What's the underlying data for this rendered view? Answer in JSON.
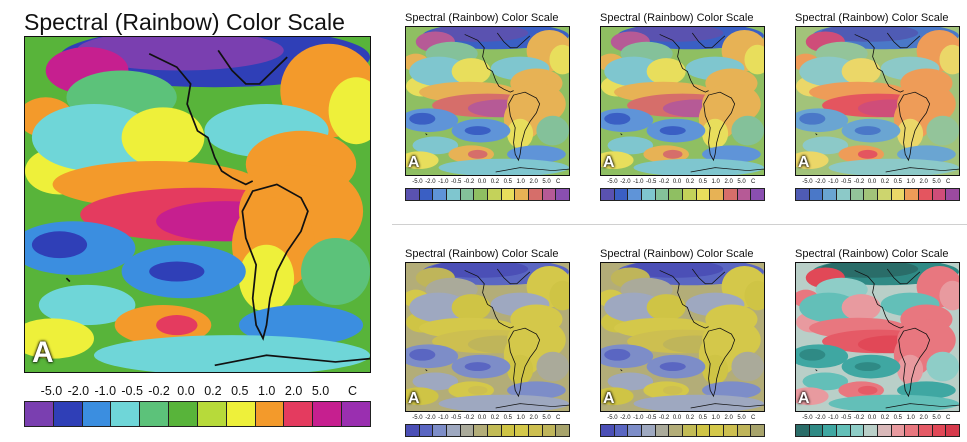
{
  "title": "Spectral (Rainbow) Color Scale",
  "panel_letter": "A",
  "colorbar": {
    "ticks": [
      "-5.0",
      "-2.0",
      "-1.0",
      "-0.5",
      "-0.2",
      "0.0",
      "0.2",
      "0.5",
      "1.0",
      "2.0",
      "5.0"
    ],
    "unit": "C"
  },
  "panels": [
    {
      "name": "main",
      "colors": [
        "#7a3fb0",
        "#2f3fb7",
        "#3b8ee0",
        "#6fd6d8",
        "#5cc27a",
        "#58b43a",
        "#b7da3a",
        "#eef03a",
        "#f39a2b",
        "#e43b5f",
        "#c61f8f",
        "#9a2fb0"
      ]
    },
    {
      "name": "variant-1",
      "colors": [
        "#5a52b0",
        "#3a5fc4",
        "#5f94d8",
        "#7fc6cf",
        "#84c19a",
        "#8fbf62",
        "#c4d25a",
        "#e8de5c",
        "#e7b255",
        "#d66e6a",
        "#b65a96",
        "#8a4fb0"
      ]
    },
    {
      "name": "variant-2",
      "colors": [
        "#5a52b0",
        "#3a5fc4",
        "#5f94d8",
        "#7fc6cf",
        "#84c19a",
        "#8fbf62",
        "#c4d25a",
        "#e8de5c",
        "#e7b255",
        "#d66e6a",
        "#b65a96",
        "#8a4fb0"
      ]
    },
    {
      "name": "variant-3",
      "colors": [
        "#4f5bb4",
        "#4a78c8",
        "#6aa5d2",
        "#8cc9c8",
        "#93c49a",
        "#a2c37a",
        "#cdd56e",
        "#ebd768",
        "#ee9c58",
        "#e4555f",
        "#cf4d79",
        "#9b4aa0"
      ]
    },
    {
      "name": "variant-4",
      "colors": [
        "#4b4fb6",
        "#5a66c2",
        "#7d8dc8",
        "#9ea8c0",
        "#aaaa9a",
        "#b3ad78",
        "#c2bb55",
        "#cfc445",
        "#d4c84a",
        "#cdbf50",
        "#bfb55a",
        "#a7a36b"
      ]
    },
    {
      "name": "variant-5",
      "colors": [
        "#4b4fb6",
        "#5a66c2",
        "#7d8dc8",
        "#9ea8c0",
        "#aaaa9a",
        "#b3ad78",
        "#c2bb55",
        "#cfc445",
        "#d4c84a",
        "#cdbf50",
        "#bfb55a",
        "#a7a36b"
      ]
    },
    {
      "name": "variant-6",
      "colors": [
        "#2a6d69",
        "#2f8a85",
        "#3fa7a2",
        "#63bfb8",
        "#8ecdc7",
        "#b9cfc8",
        "#d9b8b9",
        "#e89a9f",
        "#e8777f",
        "#e55a66",
        "#e14857",
        "#d63a4c"
      ]
    }
  ]
}
